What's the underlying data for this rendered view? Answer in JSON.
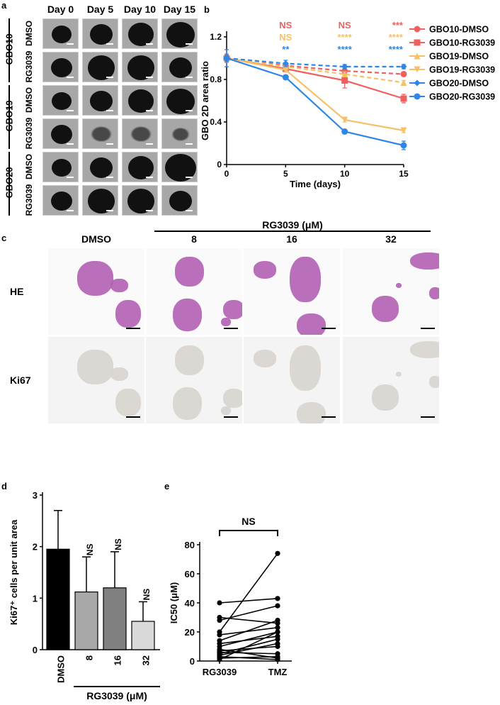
{
  "panel_a": {
    "letter": "a",
    "days": [
      "Day 0",
      "Day 5",
      "Day 10",
      "Day 15"
    ],
    "groups": [
      "GBO10",
      "GBO19",
      "GBO20"
    ],
    "conditions": [
      "DMSO",
      "RG3039"
    ]
  },
  "panel_b": {
    "letter": "b"
  },
  "panel_c": {
    "letter": "c",
    "header_group": "RG3039 (μM)",
    "columns": [
      "DMSO",
      "8",
      "16",
      "32"
    ],
    "rows": [
      "HE",
      "Ki67"
    ],
    "colors": {
      "he_stain": "#b35fb3",
      "ki67_stain": "#d6d2cc"
    }
  },
  "panel_d": {
    "letter": "d"
  },
  "panel_e": {
    "letter": "e"
  },
  "chart_data": [
    {
      "id": "b",
      "type": "line",
      "xlabel": "Time (days)",
      "ylabel": "GBO 2D area ratio",
      "x": [
        0,
        5,
        10,
        15
      ],
      "xlim": [
        0,
        15
      ],
      "ylim": [
        0,
        1.2
      ],
      "xticks": [
        0,
        5,
        10,
        15
      ],
      "yticks": [
        0,
        0.4,
        0.8,
        1.2
      ],
      "legend_position": "right",
      "series": [
        {
          "name": "GBO10-DMSO",
          "values": [
            1.0,
            0.93,
            0.88,
            0.85
          ],
          "err": [
            0.02,
            0.02,
            0.02,
            0.02
          ],
          "color": "#ee6160",
          "dashed": true,
          "marker": "circle"
        },
        {
          "name": "GBO10-RG3039",
          "values": [
            1.0,
            0.9,
            0.79,
            0.62
          ],
          "err": [
            0.04,
            0.03,
            0.07,
            0.04
          ],
          "color": "#ee6160",
          "dashed": false,
          "marker": "square"
        },
        {
          "name": "GBO19-DMSO",
          "values": [
            1.0,
            0.92,
            0.85,
            0.77
          ],
          "err": [
            0.02,
            0.02,
            0.02,
            0.02
          ],
          "color": "#f6c166",
          "dashed": true,
          "marker": "triangle-up"
        },
        {
          "name": "GBO19-RG3039",
          "values": [
            1.0,
            0.89,
            0.42,
            0.32
          ],
          "err": [
            0.02,
            0.02,
            0.02,
            0.02
          ],
          "color": "#f6c166",
          "dashed": false,
          "marker": "triangle-down"
        },
        {
          "name": "GBO20-DMSO",
          "values": [
            1.0,
            0.95,
            0.92,
            0.92
          ],
          "err": [
            0.08,
            0.03,
            0.02,
            0.02
          ],
          "color": "#2e86e6",
          "dashed": true,
          "marker": "diamond"
        },
        {
          "name": "GBO20-RG3039",
          "values": [
            1.0,
            0.82,
            0.31,
            0.18
          ],
          "err": [
            0.03,
            0.02,
            0.02,
            0.04
          ],
          "color": "#2e86e6",
          "dashed": false,
          "marker": "circle"
        }
      ],
      "annotations": [
        {
          "text": "NS",
          "x": 5,
          "row": 0,
          "color": "#ee6160"
        },
        {
          "text": "NS",
          "x": 10,
          "row": 0,
          "color": "#ee6160"
        },
        {
          "text": "***",
          "x": 15,
          "row": 0,
          "color": "#ee6160"
        },
        {
          "text": "NS",
          "x": 5,
          "row": 1,
          "color": "#f6c166"
        },
        {
          "text": "****",
          "x": 10,
          "row": 1,
          "color": "#f6c166"
        },
        {
          "text": "****",
          "x": 15,
          "row": 1,
          "color": "#f6c166"
        },
        {
          "text": "**",
          "x": 5,
          "row": 2,
          "color": "#2e86e6"
        },
        {
          "text": "****",
          "x": 10,
          "row": 2,
          "color": "#2e86e6"
        },
        {
          "text": "****",
          "x": 15,
          "row": 2,
          "color": "#2e86e6"
        }
      ]
    },
    {
      "id": "d",
      "type": "bar",
      "ylabel": "Ki67⁺ cells per unit area",
      "categories": [
        "DMSO",
        "8",
        "16",
        "32"
      ],
      "values": [
        1.95,
        1.12,
        1.2,
        0.55
      ],
      "err": [
        0.75,
        0.68,
        0.7,
        0.38
      ],
      "bar_colors": [
        "#000000",
        "#a8a8a8",
        "#808080",
        "#d9d9d9"
      ],
      "ylim": [
        0,
        3
      ],
      "yticks": [
        0,
        1,
        2,
        3
      ],
      "annotations": [
        "",
        "NS",
        "NS",
        "NS"
      ],
      "group_label": "RG3039 (μM)"
    },
    {
      "id": "e",
      "type": "scatter",
      "ylabel": "IC50 (μM)",
      "categories": [
        "RG3039",
        "TMZ"
      ],
      "ylim": [
        0,
        80
      ],
      "yticks": [
        0,
        20,
        40,
        60,
        80
      ],
      "bracket_label": "NS",
      "pairs": [
        [
          40,
          43
        ],
        [
          30,
          26
        ],
        [
          28,
          38
        ],
        [
          20,
          74
        ],
        [
          18,
          23
        ],
        [
          14,
          28
        ],
        [
          12,
          17
        ],
        [
          10,
          20
        ],
        [
          8,
          2
        ],
        [
          7,
          10
        ],
        [
          6,
          5
        ],
        [
          5,
          15
        ],
        [
          4,
          12
        ],
        [
          3,
          1
        ],
        [
          2,
          3
        ],
        [
          1,
          20
        ]
      ]
    }
  ]
}
